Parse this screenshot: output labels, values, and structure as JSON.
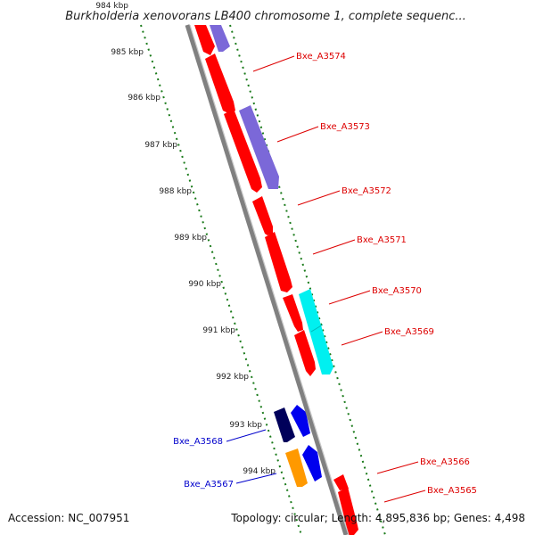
{
  "title": "Burkholderia xenovorans LB400 chromosome 1, complete sequenc...",
  "footer": {
    "accession": "Accession: NC_007951",
    "topology": "Topology: circular; Length: 4,895,836 bp; Genes: 4,498"
  },
  "scale_labels": [
    "984 kbp",
    "985 kbp",
    "986 kbp",
    "987 kbp",
    "988 kbp",
    "989 kbp",
    "990 kbp",
    "991 kbp",
    "992 kbp",
    "993 kbp",
    "994 kbp"
  ],
  "colors": {
    "forward_red": "#ff0000",
    "reverse_purple": "#7b68d8",
    "cyan": "#00f0f0",
    "navy": "#00005a",
    "blue": "#0000ee",
    "orange": "#ff9900",
    "backbone": "#808080",
    "tick_green": "#1a7a1a",
    "label_red": "#dd0000",
    "label_blue": "#0000cc"
  },
  "gene_labels": [
    {
      "name": "Bxe_A3574",
      "color": "red"
    },
    {
      "name": "Bxe_A3573",
      "color": "red"
    },
    {
      "name": "Bxe_A3572",
      "color": "red"
    },
    {
      "name": "Bxe_A3571",
      "color": "red"
    },
    {
      "name": "Bxe_A3570",
      "color": "red"
    },
    {
      "name": "Bxe_A3569",
      "color": "red"
    },
    {
      "name": "Bxe_A3568",
      "color": "blue"
    },
    {
      "name": "Bxe_A3567",
      "color": "blue"
    },
    {
      "name": "Bxe_A3566",
      "color": "red"
    },
    {
      "name": "Bxe_A3565",
      "color": "red"
    }
  ]
}
